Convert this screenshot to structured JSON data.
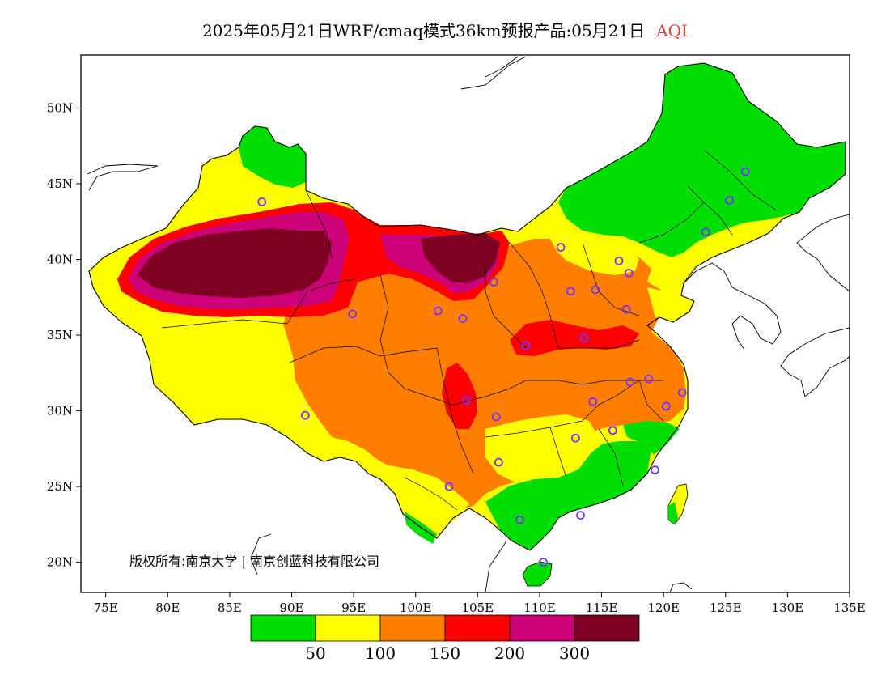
{
  "title": {
    "text": "2025年05月21日WRF/cmaq模式36km预报产品:05月21日",
    "pollutant": "AQI"
  },
  "axes": {
    "lon_ticks": [
      "75E",
      "80E",
      "85E",
      "90E",
      "95E",
      "100E",
      "105E",
      "110E",
      "115E",
      "120E",
      "125E",
      "130E",
      "135E"
    ],
    "lon_values": [
      75,
      80,
      85,
      90,
      95,
      100,
      105,
      110,
      115,
      120,
      125,
      130,
      135
    ],
    "lat_ticks": [
      "20N",
      "25N",
      "30N",
      "35N",
      "40N",
      "45N",
      "50N"
    ],
    "lat_values": [
      20,
      25,
      30,
      35,
      40,
      45,
      50
    ],
    "lon_range": [
      73,
      135
    ],
    "lat_range": [
      18,
      53.5
    ]
  },
  "colors": {
    "green": "#00dd00",
    "yellow": "#ffff00",
    "orange": "#ff7e00",
    "red": "#ff0000",
    "magenta": "#cc0077",
    "maroon": "#7e0023",
    "station": "#7733ff"
  },
  "legend": {
    "colors": [
      "#00dd00",
      "#ffff00",
      "#ff7e00",
      "#ff0000",
      "#cc0077",
      "#7e0023"
    ],
    "labels": [
      "50",
      "100",
      "150",
      "200",
      "300"
    ]
  },
  "copyright": "版权所有:南京大学 | 南京创蓝科技有限公司",
  "stations": [
    {
      "lon": 87.6,
      "lat": 43.8
    },
    {
      "lon": 91.1,
      "lat": 29.7
    },
    {
      "lon": 94.9,
      "lat": 36.4
    },
    {
      "lon": 101.8,
      "lat": 36.6
    },
    {
      "lon": 103.8,
      "lat": 36.1
    },
    {
      "lon": 104.1,
      "lat": 30.7
    },
    {
      "lon": 106.5,
      "lat": 29.6
    },
    {
      "lon": 106.7,
      "lat": 26.6
    },
    {
      "lon": 102.7,
      "lat": 25.0
    },
    {
      "lon": 108.4,
      "lat": 22.8
    },
    {
      "lon": 110.3,
      "lat": 20.0
    },
    {
      "lon": 113.3,
      "lat": 23.1
    },
    {
      "lon": 112.9,
      "lat": 28.2
    },
    {
      "lon": 114.3,
      "lat": 30.6
    },
    {
      "lon": 115.9,
      "lat": 28.7
    },
    {
      "lon": 117.3,
      "lat": 31.9
    },
    {
      "lon": 118.8,
      "lat": 32.1
    },
    {
      "lon": 120.2,
      "lat": 30.3
    },
    {
      "lon": 121.5,
      "lat": 31.2
    },
    {
      "lon": 119.3,
      "lat": 26.1
    },
    {
      "lon": 108.9,
      "lat": 34.3
    },
    {
      "lon": 113.6,
      "lat": 34.8
    },
    {
      "lon": 117.0,
      "lat": 36.7
    },
    {
      "lon": 114.5,
      "lat": 38.0
    },
    {
      "lon": 112.5,
      "lat": 37.9
    },
    {
      "lon": 106.3,
      "lat": 38.5
    },
    {
      "lon": 111.7,
      "lat": 40.8
    },
    {
      "lon": 116.4,
      "lat": 39.9
    },
    {
      "lon": 117.2,
      "lat": 39.1
    },
    {
      "lon": 123.4,
      "lat": 41.8
    },
    {
      "lon": 125.3,
      "lat": 43.9
    },
    {
      "lon": 126.6,
      "lat": 45.8
    }
  ]
}
